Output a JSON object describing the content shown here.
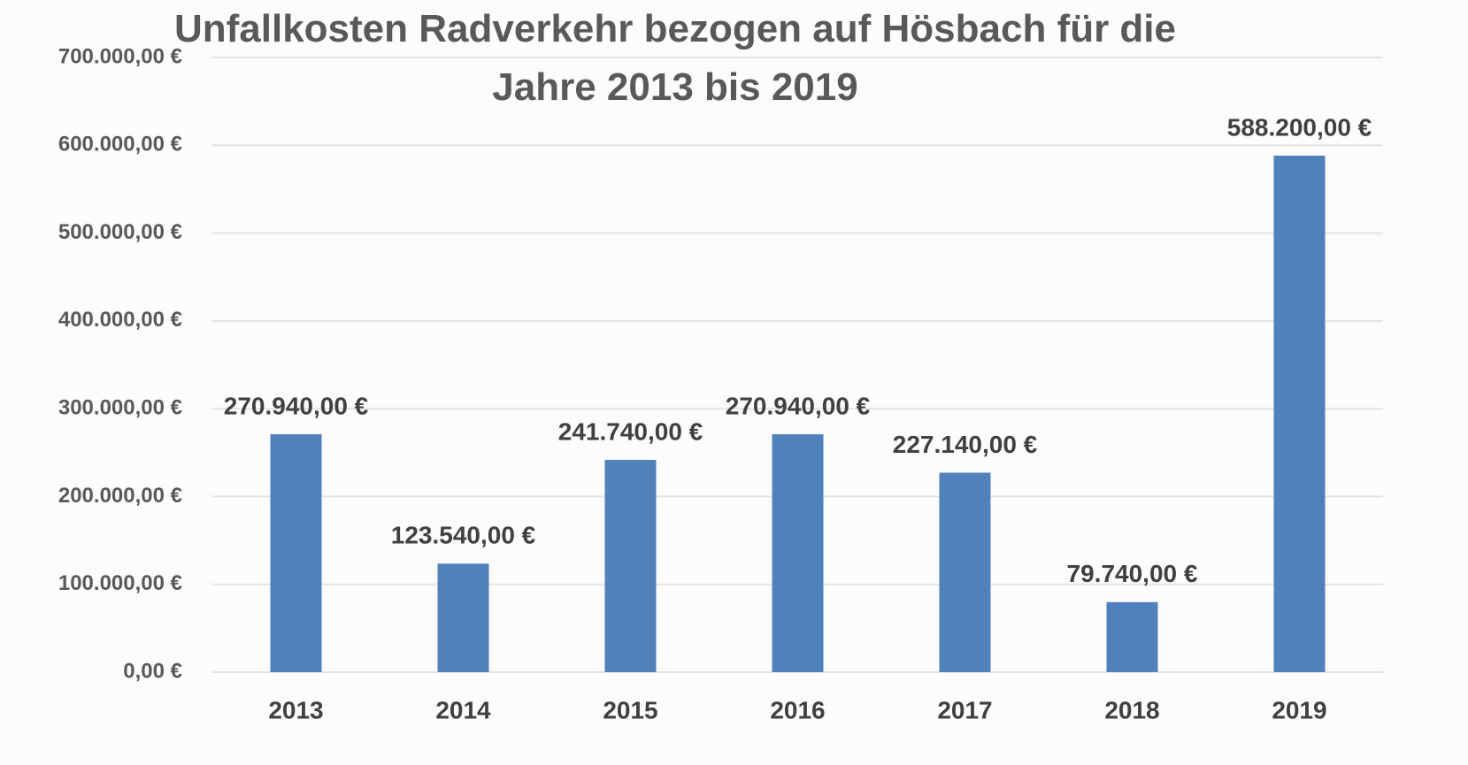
{
  "chart_data": {
    "type": "bar",
    "title": "Unfallkosten Radverkehr bezogen auf Hösbach für die Jahre 2013 bis 2019",
    "categories": [
      "2013",
      "2014",
      "2015",
      "2016",
      "2017",
      "2018",
      "2019"
    ],
    "values": [
      270940,
      123540,
      241740,
      270940,
      227140,
      79740,
      588200
    ],
    "value_labels": [
      "270.940,00 €",
      "123.540,00 €",
      "241.740,00 €",
      "270.940,00 €",
      "227.140,00 €",
      "79.740,00 €",
      "588.200,00 €"
    ],
    "color": "#4f81bd",
    "ylim": [
      0,
      700000
    ],
    "yticks": [
      {
        "value": 0,
        "label": "0,00 €"
      },
      {
        "value": 100000,
        "label": "100.000,00 €"
      },
      {
        "value": 200000,
        "label": "200.000,00 €"
      },
      {
        "value": 300000,
        "label": "300.000,00 €"
      },
      {
        "value": 400000,
        "label": "400.000,00 €"
      },
      {
        "value": 500000,
        "label": "500.000,00 €"
      },
      {
        "value": 600000,
        "label": "600.000,00 €"
      },
      {
        "value": 700000,
        "label": "700.000,00 €"
      }
    ],
    "grid": true
  }
}
